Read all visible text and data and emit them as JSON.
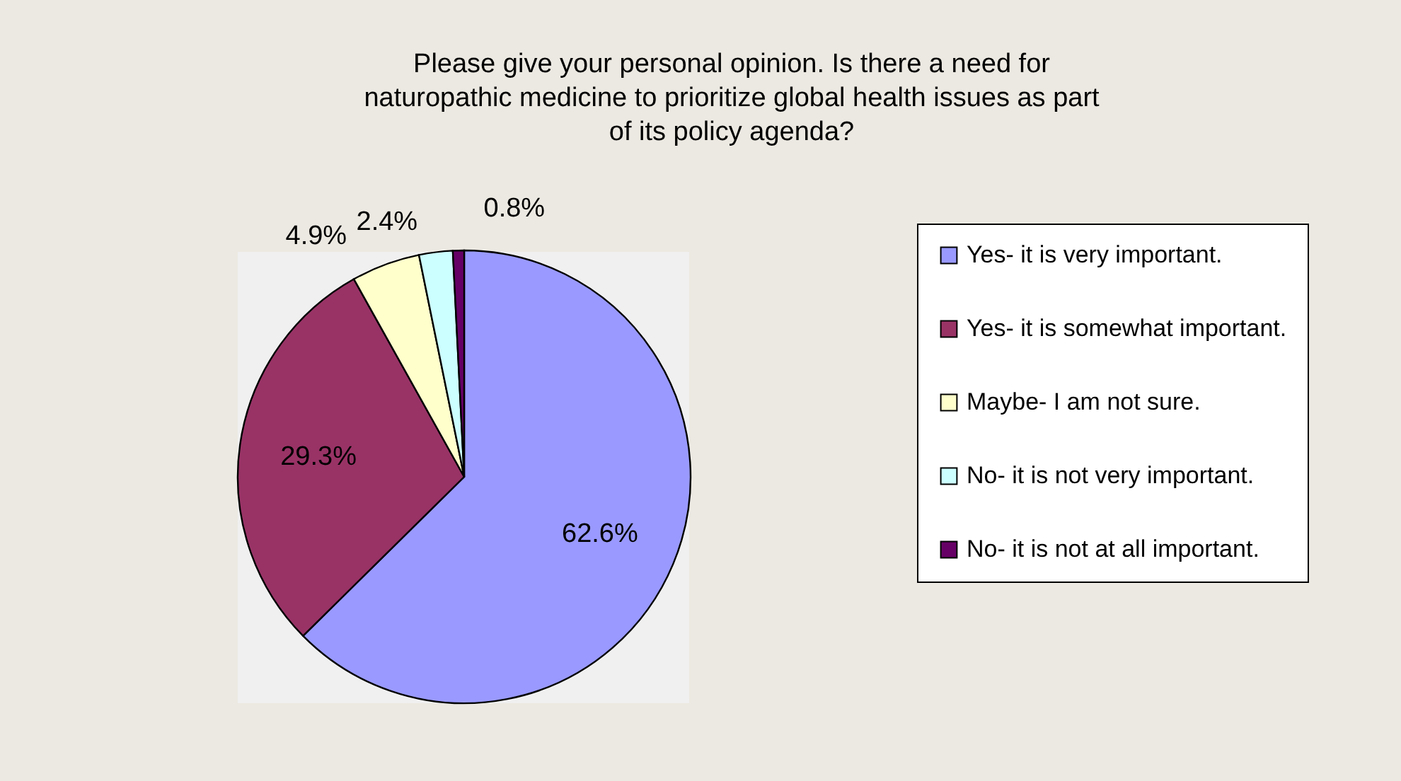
{
  "chart_data": {
    "type": "pie",
    "title": "Please give your personal opinion. Is there a need for naturopathic medicine to prioritize global health issues as part of its policy agenda?",
    "categories": [
      "Yes- it is very important.",
      "Yes- it is somewhat important.",
      "Maybe- I am not sure.",
      "No- it is not very important.",
      "No- it is not at all important."
    ],
    "values": [
      62.6,
      29.3,
      4.9,
      2.4,
      0.8
    ],
    "value_labels": [
      "62.6%",
      "29.3%",
      "4.9%",
      "2.4%",
      "0.8%"
    ],
    "colors": [
      "#9999ff",
      "#993366",
      "#ffffcc",
      "#ccffff",
      "#660066"
    ],
    "legend": "right"
  }
}
